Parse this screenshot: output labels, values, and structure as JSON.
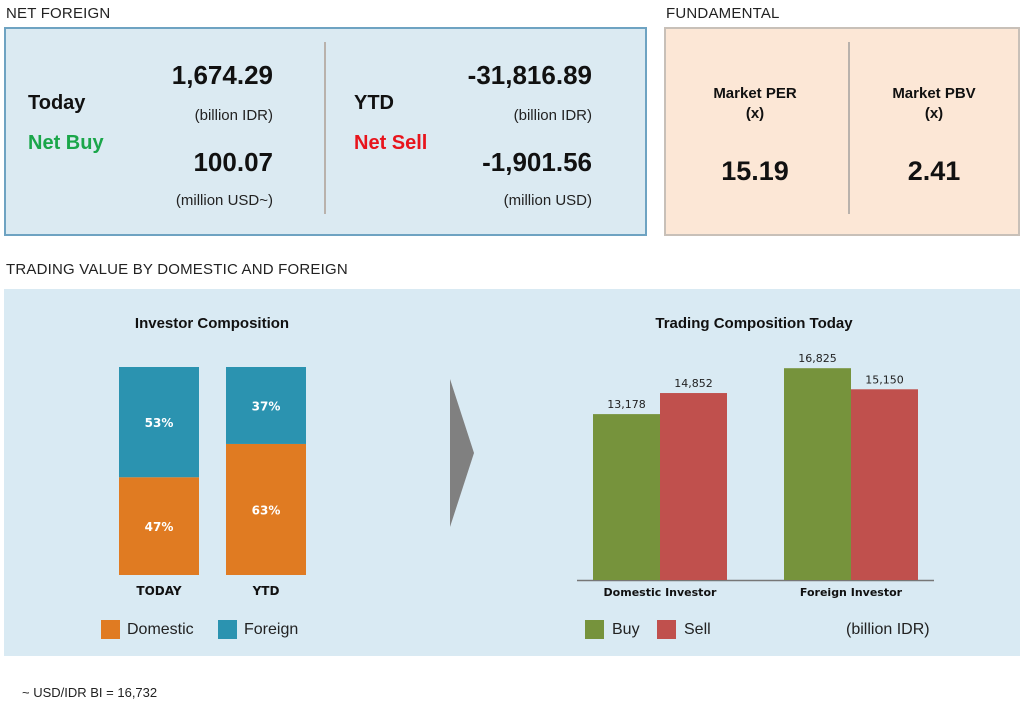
{
  "net_foreign": {
    "section_title": "NET FOREIGN",
    "today": {
      "label": "Today",
      "status": "Net Buy",
      "status_color": "#1aa64a",
      "value_idr": "1,674.29",
      "unit_idr": "(billion IDR)",
      "value_usd": "100.07",
      "unit_usd": "(million USD~)"
    },
    "ytd": {
      "label": "YTD",
      "status": "Net Sell",
      "status_color": "#e8141c",
      "value_idr": "-31,816.89",
      "unit_idr": "(billion IDR)",
      "value_usd": "-1,901.56",
      "unit_usd": "(million USD)"
    }
  },
  "fundamental": {
    "section_title": "FUNDAMENTAL",
    "per": {
      "label_line1": "Market PER",
      "label_line2": "(x)",
      "value": "15.19"
    },
    "pbv": {
      "label_line1": "Market PBV",
      "label_line2": "(x)",
      "value": "2.41"
    }
  },
  "trading": {
    "section_title": "TRADING VALUE BY DOMESTIC AND FOREIGN",
    "footnote": "~ USD/IDR BI = 16,732"
  },
  "colors": {
    "domestic": "#e07b22",
    "foreign": "#2b93b0",
    "buy": "#76933c",
    "sell": "#c0504d",
    "arrow": "#808080"
  },
  "chart_data": [
    {
      "type": "bar",
      "stacked": true,
      "percent": true,
      "title": "Investor Composition",
      "categories": [
        "TODAY",
        "YTD"
      ],
      "series": [
        {
          "name": "Domestic",
          "values": [
            47,
            63
          ],
          "labels": [
            "47%",
            "63%"
          ]
        },
        {
          "name": "Foreign",
          "values": [
            53,
            37
          ],
          "labels": [
            "53%",
            "37%"
          ]
        }
      ],
      "ylim": [
        0,
        100
      ],
      "legend": "bottom"
    },
    {
      "type": "bar",
      "title": "Trading Composition Today",
      "categories": [
        "Domestic Investor",
        "Foreign Investor"
      ],
      "series": [
        {
          "name": "Buy",
          "values": [
            13178,
            16825
          ],
          "labels": [
            "13,178",
            "16,825"
          ]
        },
        {
          "name": "Sell",
          "values": [
            14852,
            15150
          ],
          "labels": [
            "14,852",
            "15,150"
          ]
        }
      ],
      "unit_note": "(billion IDR)",
      "ylim": [
        0,
        17000
      ],
      "legend": "bottom"
    }
  ]
}
